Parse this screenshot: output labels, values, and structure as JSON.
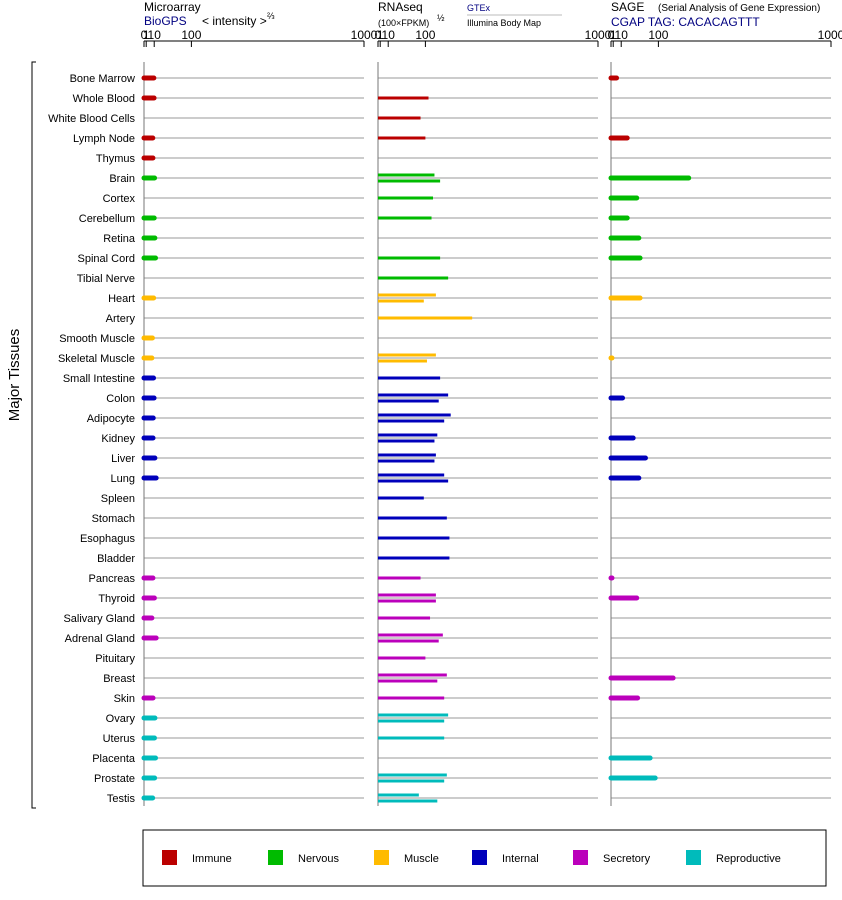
{
  "chart_data": {
    "type": "bar",
    "orientation": "horizontal",
    "y_axis_label": "Major Tissues",
    "scale": "power-2/3",
    "tick_labels": [
      "0",
      "1",
      "10",
      "100",
      "1000"
    ],
    "tick_values": [
      0,
      1,
      10,
      100,
      1000
    ],
    "xlim": [
      0,
      1000
    ],
    "tissues": [
      "Bone Marrow",
      "Whole Blood",
      "White Blood Cells",
      "Lymph Node",
      "Thymus",
      "Brain",
      "Cortex",
      "Cerebellum",
      "Retina",
      "Spinal Cord",
      "Tibial Nerve",
      "Heart",
      "Artery",
      "Smooth Muscle",
      "Skeletal Muscle",
      "Small Intestine",
      "Colon",
      "Adipocyte",
      "Kidney",
      "Liver",
      "Lung",
      "Spleen",
      "Stomach",
      "Esophagus",
      "Bladder",
      "Pancreas",
      "Thyroid",
      "Salivary Gland",
      "Adrenal Gland",
      "Pituitary",
      "Breast",
      "Skin",
      "Ovary",
      "Uterus",
      "Placenta",
      "Prostate",
      "Testis"
    ],
    "tissue_category": [
      0,
      0,
      0,
      0,
      0,
      1,
      1,
      1,
      1,
      1,
      1,
      2,
      2,
      2,
      2,
      3,
      3,
      3,
      3,
      3,
      3,
      3,
      3,
      3,
      3,
      4,
      4,
      4,
      4,
      4,
      4,
      4,
      5,
      5,
      5,
      5,
      5
    ],
    "categories": [
      {
        "name": "Immune",
        "color": "#bb0000"
      },
      {
        "name": "Nervous",
        "color": "#00bb00"
      },
      {
        "name": "Muscle",
        "color": "#ffbb00"
      },
      {
        "name": "Internal",
        "color": "#0000bb"
      },
      {
        "name": "Secretory",
        "color": "#bb00bb"
      },
      {
        "name": "Reproductive",
        "color": "#00bbbb"
      }
    ],
    "panels": [
      {
        "title": "Microarray",
        "subtitle": "BioGPS",
        "axis_note": "< intensity >",
        "axis_note_exp": "⅔",
        "values": [
          [
            9.5
          ],
          [
            9.8
          ],
          [],
          [
            8
          ],
          [
            8.2
          ],
          [
            10.5
          ],
          [],
          [
            10
          ],
          [
            11
          ],
          [
            12
          ],
          [],
          [
            9.2
          ],
          [],
          [
            7.5
          ],
          [
            6.8
          ],
          [
            9
          ],
          [
            9.8
          ],
          [
            8.6
          ],
          [
            8.3
          ],
          [
            11
          ],
          [
            13
          ],
          [],
          [],
          [],
          [],
          [
            8.2
          ],
          [
            10.3
          ],
          [
            6.8
          ],
          [
            13
          ],
          [],
          [],
          [
            8.3
          ],
          [
            11.1
          ],
          [
            10.4
          ],
          [
            12
          ],
          [
            10.6
          ],
          [
            7.8
          ]
        ]
      },
      {
        "title": "RNAseq",
        "axis_note": "(100×FPKM)",
        "axis_note_exp": "½",
        "source_top": "GTEx",
        "source_bottom": "Illumina Body Map",
        "values": [
          [],
          [
            110
          ],
          [
            85
          ],
          [
            100
          ],
          [],
          [
            130,
            150
          ],
          [
            125
          ],
          [
            120
          ],
          [],
          [
            150
          ],
          [
            180
          ],
          [
            135,
            95
          ],
          [
            280
          ],
          [],
          [
            135,
            105
          ],
          [
            150
          ],
          [
            180,
            145
          ],
          [
            190,
            165
          ],
          [
            140,
            130
          ],
          [
            135,
            130
          ],
          [
            165,
            180
          ],
          [
            95
          ],
          [
            175
          ],
          [
            185
          ],
          [
            185
          ],
          [
            85
          ],
          [
            135,
            135
          ],
          [
            115
          ],
          [
            160,
            145
          ],
          [
            100
          ],
          [
            175,
            140
          ],
          [
            165
          ],
          [
            180,
            165
          ],
          [
            165
          ],
          [],
          [
            175,
            165
          ],
          [
            80,
            140
          ]
        ]
      },
      {
        "title": "SAGE",
        "subtitle_note": "(Serial Analysis of Gene Expression)",
        "subtitle": "CGAP TAG: CACACAGTTT",
        "values": [
          [
            4
          ],
          [],
          [],
          [
            20
          ],
          [],
          [
            210
          ],
          [
            40
          ],
          [
            20
          ],
          [
            45
          ],
          [
            48
          ],
          [],
          [
            48
          ],
          [],
          [],
          [
            0
          ],
          [],
          [
            12
          ],
          [],
          [
            32
          ],
          [
            62
          ],
          [
            45
          ],
          [],
          [],
          [],
          [],
          [
            0
          ],
          [
            40
          ],
          [],
          [],
          [],
          [
            150
          ],
          [
            42
          ],
          [],
          [],
          [
            75
          ],
          [
            90
          ],
          []
        ]
      }
    ],
    "grid": true
  }
}
